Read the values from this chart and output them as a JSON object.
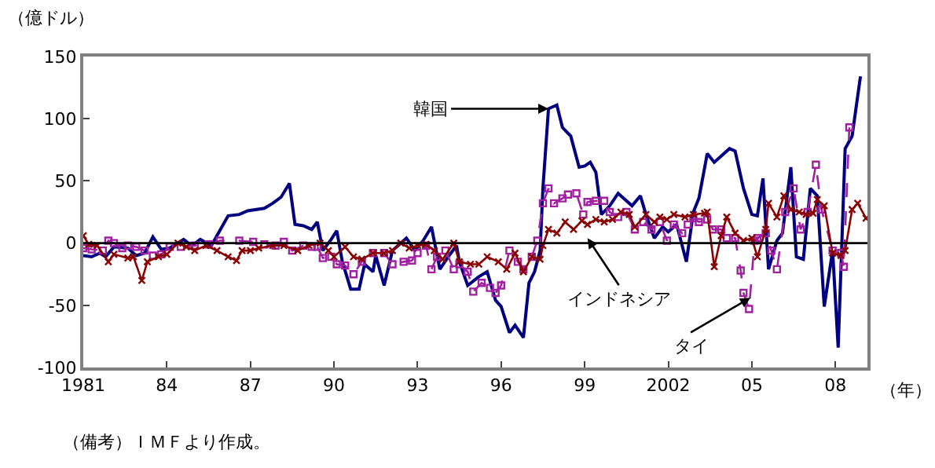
{
  "chart_data": {
    "type": "line",
    "ylabel": "（億ドル）",
    "xlabel": "（年）",
    "xlim": [
      1981,
      2009.15
    ],
    "ylim": [
      -100,
      150
    ],
    "xticks": [
      1981,
      {
        "value": 1984,
        "label": "84"
      },
      {
        "value": 1987,
        "label": "87"
      },
      {
        "value": 1990,
        "label": "90"
      },
      {
        "value": 1993,
        "label": "93"
      },
      {
        "value": 1996,
        "label": "96"
      },
      {
        "value": 1999,
        "label": "99"
      },
      2002,
      {
        "value": 2005,
        "label": "05"
      },
      {
        "value": 2008,
        "label": "08"
      }
    ],
    "yticks": [
      -100,
      -50,
      0,
      50,
      100,
      150
    ],
    "ref_lines": [
      {
        "axis": "y",
        "value": 0,
        "color": "#000000"
      }
    ],
    "series": [
      {
        "color": "#000080",
        "marker": "none",
        "line_style": "solid",
        "x": [
          1981,
          1981.3,
          1981.6,
          1981.8,
          1982.1,
          1982.6,
          1982.9,
          1983.2,
          1983.5,
          1983.8,
          1984.1,
          1984.6,
          1984.9,
          1985.2,
          1985.6,
          1985.8,
          1986.2,
          1986.6,
          1986.9,
          1987.5,
          1987.8,
          1988.1,
          1988.4,
          1988.6,
          1988.9,
          1989.2,
          1989.4,
          1989.6,
          1989.9,
          1990.1,
          1990.3,
          1990.6,
          1990.9,
          1991.1,
          1991.4,
          1991.5,
          1991.8,
          1992.1,
          1992.6,
          1992.9,
          1993.2,
          1993.5,
          1993.8,
          1994.1,
          1994.4,
          1994.5,
          1994.8,
          1995.2,
          1995.5,
          1995.8,
          1996.0,
          1996.3,
          1996.5,
          1996.8,
          1997.0,
          1997.2,
          1997.4,
          1997.5,
          1997.7,
          1998.0,
          1998.2,
          1998.5,
          1998.8,
          1999.0,
          1999.2,
          1999.4,
          1999.6,
          1999.9,
          2000.2,
          2000.5,
          2000.7,
          2001.0,
          2001.2,
          2001.5,
          2001.8,
          2002.0,
          2002.3,
          2002.65,
          2002.9,
          2003.1,
          2003.4,
          2003.65,
          2003.9,
          2004.2,
          2004.4,
          2004.7,
          2005.0,
          2005.2,
          2005.4,
          2005.6,
          2005.9,
          2006.1,
          2006.4,
          2006.6,
          2006.85,
          2007.1,
          2007.35,
          2007.6,
          2007.9,
          2008.1,
          2008.35,
          2008.6,
          2008.9
        ],
        "values": [
          -10,
          -11,
          -8,
          -11,
          -3,
          -4,
          -10,
          -8,
          5,
          -5,
          -4,
          3,
          -2,
          3,
          -2,
          6,
          22,
          23,
          26,
          28,
          32,
          37,
          48,
          15,
          14,
          11,
          17,
          -6,
          3,
          10,
          -15,
          -37,
          -37,
          -17,
          -23,
          -10,
          -34,
          -6,
          4,
          -6,
          2,
          13,
          -21,
          -11,
          -2,
          -15,
          -34,
          -27,
          -23,
          -46,
          -51,
          -72,
          -66,
          -76,
          -32,
          -23,
          -6,
          44,
          108,
          111,
          93,
          86,
          61,
          62,
          65,
          57,
          23,
          30,
          40,
          34,
          30,
          38,
          23,
          4,
          13,
          9,
          15,
          -15,
          25,
          36,
          72,
          65,
          70,
          76,
          74,
          44,
          23,
          22,
          52,
          -21,
          2,
          8,
          61,
          -11,
          -13,
          44,
          38,
          -51,
          -6,
          -84,
          76,
          86,
          134
        ]
      },
      {
        "color": "#a020a0",
        "marker": "square",
        "line_style": "dashed",
        "x": [
          1981,
          1981.3,
          1981.7,
          1981.9,
          1982.1,
          1982.4,
          1982.6,
          1982.9,
          1983.2,
          1983.5,
          1983.8,
          1984.1,
          1984.5,
          1985,
          1985.5,
          1985.9,
          1986.6,
          1987.1,
          1987.5,
          1987.9,
          1988.2,
          1988.5,
          1988.9,
          1989.2,
          1989.4,
          1989.6,
          1989.9,
          1990.1,
          1990.4,
          1990.7,
          1991.0,
          1991.4,
          1991.8,
          1992.1,
          1992.5,
          1992.8,
          1993.0,
          1993.3,
          1993.5,
          1993.7,
          1994.0,
          1994.3,
          1994.5,
          1994.8,
          1995.0,
          1995.3,
          1995.6,
          1995.8,
          1996.0,
          1996.3,
          1996.6,
          1996.8,
          1997.1,
          1997.3,
          1997.5,
          1997.7,
          1997.9,
          1998.2,
          1998.4,
          1998.7,
          1998.95,
          1999.1,
          1999.4,
          1999.7,
          1999.9,
          2000.2,
          2000.5,
          2000.8,
          2001.1,
          2001.4,
          2001.7,
          2001.95,
          2002.2,
          2002.5,
          2002.7,
          2002.9,
          2003.1,
          2003.4,
          2003.6,
          2003.9,
          2004.1,
          2004.4,
          2004.6,
          2004.7,
          2004.9,
          2005.1,
          2005.2,
          2005.5,
          2005.7,
          2005.9,
          2006.2,
          2006.5,
          2006.75,
          2007.0,
          2007.3,
          2007.5,
          2007.9,
          2008.2,
          2008.3,
          2008.5
        ],
        "values": [
          -4,
          -5,
          -6,
          2,
          0,
          -4,
          -2,
          -3,
          -6,
          -10,
          -9,
          -3,
          -3,
          -2,
          -1,
          2,
          2,
          1,
          -1,
          -2,
          1,
          -6,
          -2,
          -3,
          -3,
          -12,
          -11,
          -17,
          -18,
          -25,
          -15,
          -8,
          -8,
          -17,
          -15,
          -14,
          -8,
          -2,
          -21,
          -11,
          -6,
          -21,
          -17,
          -23,
          -39,
          -32,
          -36,
          -40,
          -34,
          -6,
          -15,
          -21,
          -11,
          2,
          32,
          44,
          32,
          36,
          39,
          40,
          23,
          33,
          34,
          34,
          25,
          21,
          25,
          11,
          17,
          11,
          17,
          2,
          15,
          8,
          15,
          20,
          17,
          19,
          11,
          11,
          4,
          4,
          -22,
          -40,
          -53,
          2,
          4,
          8,
          -6,
          -21,
          25,
          44,
          11,
          25,
          63,
          27,
          -6,
          -8,
          -19,
          93
        ]
      },
      {
        "color": "#8b0000",
        "marker": "cross",
        "line_style": "solid",
        "x": [
          1981,
          1981.2,
          1981.5,
          1981.9,
          1982.1,
          1982.6,
          1982.8,
          1983.1,
          1983.3,
          1983.7,
          1984.0,
          1984.4,
          1984.7,
          1985,
          1985.4,
          1985.8,
          1986.2,
          1986.5,
          1986.7,
          1987.0,
          1987.3,
          1987.8,
          1988.2,
          1988.7,
          1989.1,
          1989.5,
          1989.8,
          1990.0,
          1990.4,
          1990.7,
          1991.0,
          1991.4,
          1991.8,
          1992.1,
          1992.4,
          1992.7,
          1993.0,
          1993.3,
          1993.6,
          1993.9,
          1994.3,
          1994.5,
          1994.9,
          1995.2,
          1995.5,
          1995.9,
          1996.2,
          1996.5,
          1996.8,
          1997.1,
          1997.4,
          1997.5,
          1997.7,
          1998.0,
          1998.3,
          1998.6,
          1998.9,
          1999.1,
          1999.4,
          1999.7,
          2000.0,
          2000.3,
          2000.6,
          2000.8,
          2001.2,
          2001.5,
          2001.7,
          2001.95,
          2002.2,
          2002.6,
          2002.9,
          2003.3,
          2003.4,
          2003.65,
          2003.9,
          2004.1,
          2004.4,
          2004.7,
          2005.0,
          2005.2,
          2005.5,
          2005.6,
          2005.9,
          2006.15,
          2006.4,
          2006.7,
          2006.95,
          2007.2,
          2007.35,
          2007.6,
          2007.9,
          2008.2,
          2008.35,
          2008.6,
          2008.8,
          2009.1
        ],
        "values": [
          6,
          -1,
          -2,
          -15,
          -9,
          -12,
          -11,
          -30,
          -15,
          -11,
          -9,
          0,
          -3,
          -6,
          -2,
          -6,
          -11,
          -14,
          -6,
          -6,
          -4,
          -2,
          -2,
          -6,
          -2,
          0,
          -6,
          -11,
          -3,
          -11,
          -13,
          -8,
          -8,
          -6,
          0,
          -4,
          -2,
          -1,
          -6,
          -13,
          0,
          -15,
          -17,
          -17,
          -11,
          -15,
          -21,
          -8,
          -23,
          -11,
          -13,
          -2,
          11,
          8,
          17,
          11,
          18,
          15,
          19,
          17,
          19,
          25,
          23,
          13,
          23,
          17,
          21,
          19,
          23,
          21,
          23,
          24,
          25,
          -19,
          6,
          21,
          8,
          2,
          4,
          -11,
          11,
          32,
          21,
          38,
          27,
          25,
          23,
          24,
          35,
          30,
          -8,
          -10,
          -6,
          27,
          32,
          20
        ]
      }
    ],
    "annotations": [
      {
        "text": "韓国",
        "x": 1997.7,
        "y": 108
      },
      {
        "text": "インドネシア",
        "x": 1999.1,
        "y": 4
      },
      {
        "text": "タイ",
        "x": 2004.95,
        "y": -44
      },
      "（備考）ＩＭＦより作成。"
    ]
  }
}
